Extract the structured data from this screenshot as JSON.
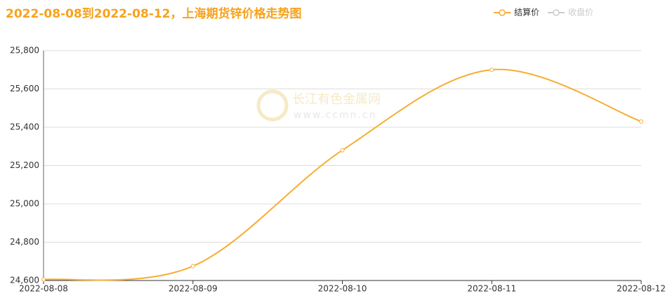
{
  "chart_data": {
    "type": "line",
    "title": "2022-08-08到2022-08-12，上海期货锌价格走势图",
    "watermark": [
      "长江有色金属网",
      "www.ccmn.cn"
    ],
    "categories": [
      "2022-08-08",
      "2022-08-09",
      "2022-08-10",
      "2022-08-11",
      "2022-08-12"
    ],
    "series": [
      {
        "name": "结算价",
        "color": "#f7ad33",
        "values": [
          24605,
          24675,
          25280,
          25700,
          25430
        ]
      },
      {
        "name": "收盘价",
        "color": "#cccccc",
        "values": [
          null,
          null,
          null,
          null,
          null
        ]
      }
    ],
    "ylim": [
      24600,
      25800
    ],
    "yticks": [
      {
        "value": 24600,
        "label": "24,600"
      },
      {
        "value": 24800,
        "label": "24,800"
      },
      {
        "value": 25000,
        "label": "25,000"
      },
      {
        "value": 25200,
        "label": "25,200"
      },
      {
        "value": 25400,
        "label": "25,400"
      },
      {
        "value": 25600,
        "label": "25,600"
      },
      {
        "value": 25800,
        "label": "25,800"
      }
    ],
    "grid": true,
    "smooth": true,
    "legend": "top-right"
  }
}
